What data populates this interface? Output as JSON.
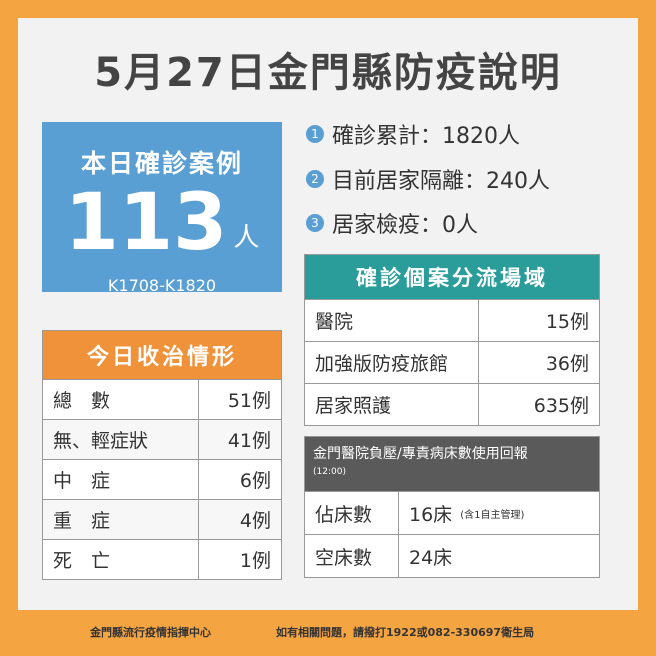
{
  "header": {
    "title": "5月27日金門縣防疫說明"
  },
  "today": {
    "label": "本日確診案例",
    "count": "113",
    "unit": "人",
    "range": "K1708-K1820"
  },
  "summary": [
    {
      "num": "1",
      "text": "確診累計：1820人"
    },
    {
      "num": "2",
      "text": "目前居家隔離：240人"
    },
    {
      "num": "3",
      "text": "居家檢疫：0人"
    }
  ],
  "treatment": {
    "title": "今日收治情形",
    "rows": [
      [
        "總　數",
        "51例"
      ],
      [
        "無、輕症狀",
        "41例"
      ],
      [
        "中　症",
        "6例"
      ],
      [
        "重　症",
        "4例"
      ],
      [
        "死　亡",
        "1例"
      ]
    ]
  },
  "triage": {
    "title": "確診個案分流場域",
    "rows": [
      [
        "醫院",
        "15例"
      ],
      [
        "加強版防疫旅館",
        "36例"
      ],
      [
        "居家照護",
        "635例"
      ]
    ]
  },
  "beds": {
    "title": "金門醫院負壓/專責病床數使用回報",
    "time": "(12:00)",
    "rows": [
      [
        "佔床數",
        "16床",
        "(含1自主管理)"
      ],
      [
        "空床數",
        "24床"
      ]
    ]
  },
  "footer": {
    "org": "金門縣流行疫情指揮中心",
    "contact": "如有相關問題，請撥打1922或082-330697衛生局"
  }
}
